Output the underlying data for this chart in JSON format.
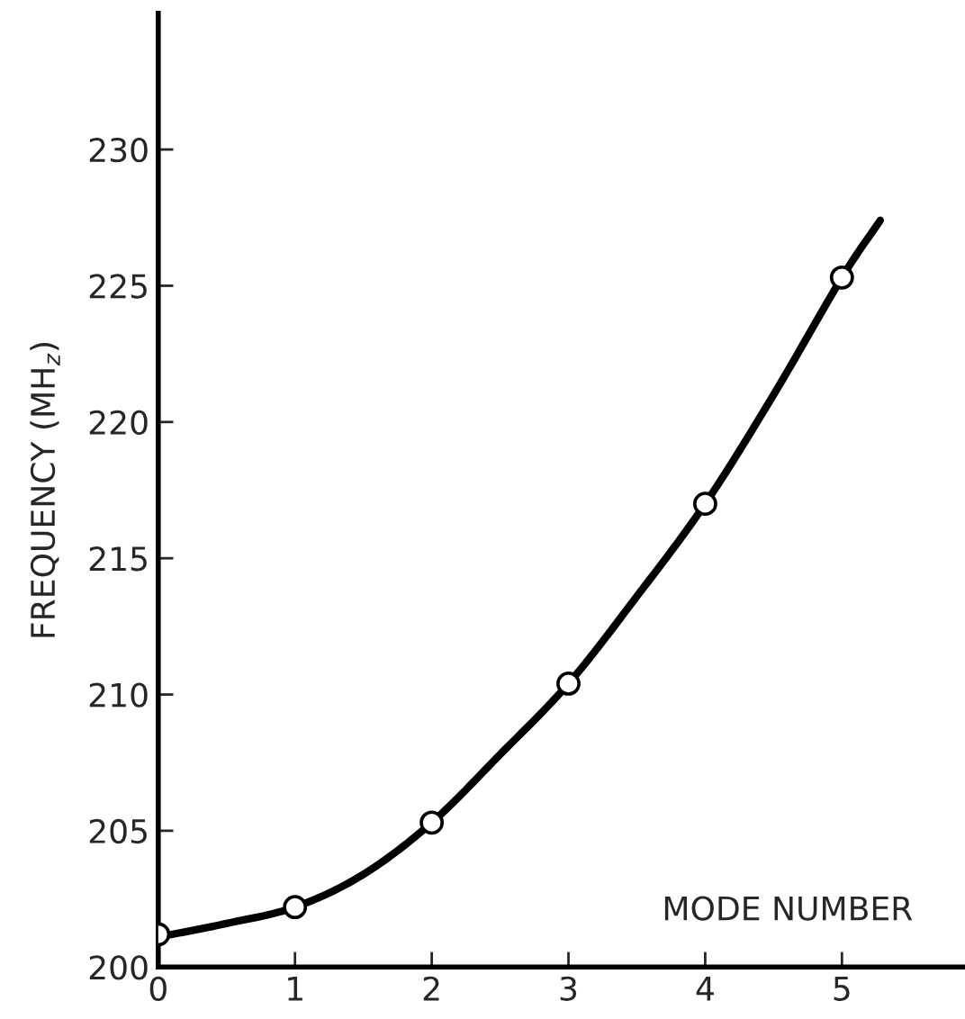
{
  "chart_data": {
    "type": "scatter",
    "xlabel": "MODE NUMBER",
    "ylabel": "FREQUENCY (MH$_{z}$)",
    "xlim": [
      0,
      5.9
    ],
    "ylim": [
      200,
      235
    ],
    "xticks": [
      0,
      1,
      2,
      3,
      4,
      5
    ],
    "yticks": [
      200,
      205,
      210,
      215,
      220,
      225,
      230
    ],
    "grid": false,
    "legend": false,
    "series": [
      {
        "color": "#000000",
        "marker": "circle",
        "x": [
          0,
          1,
          2,
          3,
          4,
          5
        ],
        "values": [
          201.2,
          202.2,
          205.3,
          210.4,
          217.0,
          225.3
        ]
      },
      {
        "type": "line",
        "color": "#000000",
        "marker": "none",
        "line_style": "solid",
        "x": [
          0,
          0.5,
          1,
          1.5,
          2,
          2.5,
          3,
          3.5,
          4,
          4.5,
          5,
          5.28
        ],
        "values": [
          201.1,
          201.6,
          202.2,
          203.4,
          205.3,
          207.8,
          210.4,
          213.6,
          217.0,
          221.0,
          225.3,
          227.4
        ]
      }
    ]
  }
}
